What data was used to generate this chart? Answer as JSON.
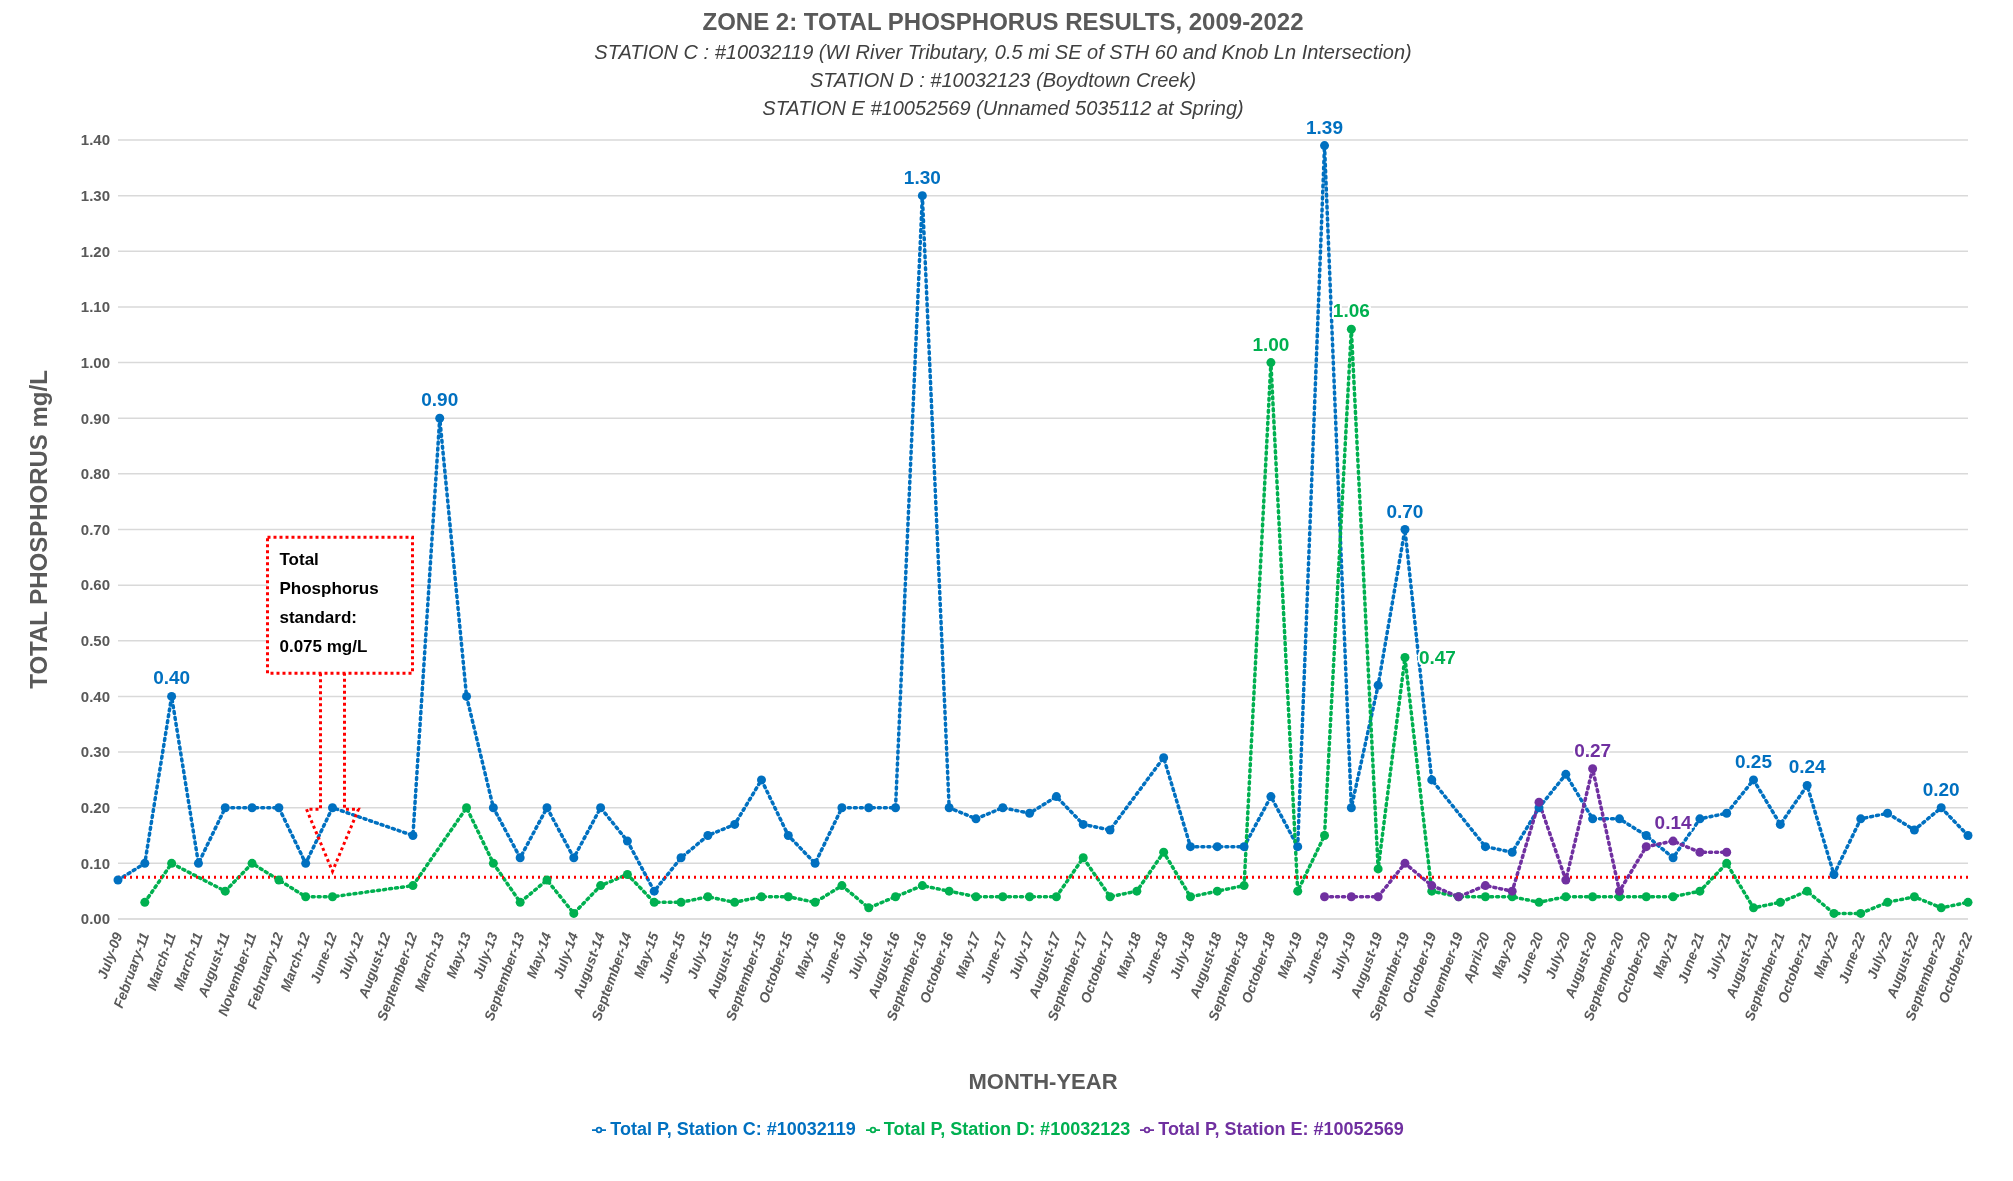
{
  "chart_data": {
    "type": "line",
    "title": "ZONE 2: TOTAL PHOSPHORUS RESULTS, 2009-2022",
    "subtitle": "STATION C : #10032119 (WI River Tributary, 0.5 mi SE of STH 60 and Knob Ln Intersection)\nSTATION D : #10032123 (Boydtown Creek)\nSTATION E  #10052569 (Unnamed 5035112 at Spring)",
    "xlabel": "MONTH-YEAR",
    "ylabel": "TOTAL PHOSPHORUS mg/L",
    "categories": [
      "July-09",
      "February-11",
      "March-11",
      "March-11",
      "August-11",
      "November-11",
      "February-12",
      "March-12",
      "June-12",
      "July-12",
      "August-12",
      "September-12",
      "March-13",
      "May-13",
      "July-13",
      "September-13",
      "May-14",
      "July-14",
      "August-14",
      "September-14",
      "May-15",
      "June-15",
      "July-15",
      "August-15",
      "September-15",
      "October-15",
      "May-16",
      "June-16",
      "July-16",
      "August-16",
      "September-16",
      "October-16",
      "May-17",
      "June-17",
      "July-17",
      "August-17",
      "September-17",
      "October-17",
      "May-18",
      "June-18",
      "July-18",
      "August-18",
      "September-18",
      "October-18",
      "May-19",
      "June-19",
      "July-19",
      "August-19",
      "September-19",
      "October-19",
      "November-19",
      "April-20",
      "May-20",
      "June-20",
      "July-20",
      "August-20",
      "September-20",
      "October-20",
      "May-21",
      "June-21",
      "July-21",
      "August-21",
      "September-21",
      "October-21",
      "May-22",
      "June-22",
      "July-22",
      "August-22",
      "September-22",
      "October-22"
    ],
    "series": [
      {
        "name": "Total P, Station C: #10032119",
        "color": "#0070c0",
        "values": [
          0.07,
          0.1,
          0.4,
          0.1,
          0.2,
          0.2,
          0.2,
          0.1,
          0.2,
          null,
          null,
          0.15,
          0.9,
          0.4,
          0.2,
          0.11,
          0.2,
          0.11,
          0.2,
          0.14,
          0.05,
          0.11,
          0.15,
          0.17,
          0.25,
          0.15,
          0.1,
          0.2,
          0.2,
          0.2,
          1.3,
          0.2,
          0.18,
          0.2,
          0.19,
          0.22,
          0.17,
          0.16,
          null,
          0.29,
          0.13,
          0.13,
          0.13,
          0.22,
          0.13,
          1.39,
          0.2,
          0.42,
          0.7,
          0.25,
          null,
          0.13,
          0.12,
          0.2,
          0.26,
          0.18,
          0.18,
          0.15,
          0.11,
          0.18,
          0.19,
          0.25,
          0.17,
          0.24,
          0.08,
          0.18,
          0.19,
          0.16,
          0.2,
          0.15
        ],
        "value_labels": [
          null,
          null,
          "0.40",
          null,
          null,
          null,
          null,
          null,
          null,
          null,
          null,
          null,
          "0.90",
          null,
          null,
          null,
          null,
          null,
          null,
          null,
          null,
          null,
          null,
          null,
          null,
          null,
          null,
          null,
          null,
          null,
          "1.30",
          null,
          null,
          null,
          null,
          null,
          null,
          null,
          null,
          null,
          null,
          null,
          null,
          null,
          null,
          "1.39",
          null,
          null,
          "0.70",
          null,
          null,
          null,
          null,
          null,
          null,
          null,
          null,
          null,
          null,
          null,
          null,
          "0.25",
          null,
          "0.24",
          null,
          null,
          null,
          null,
          "0.20",
          null
        ]
      },
      {
        "name": "Total P, Station D: #10032123",
        "color": "#00b050",
        "values": [
          null,
          0.03,
          0.1,
          null,
          0.05,
          0.1,
          0.07,
          0.04,
          0.04,
          null,
          null,
          0.06,
          null,
          0.2,
          0.1,
          0.03,
          0.07,
          0.01,
          0.06,
          0.08,
          0.03,
          0.03,
          0.04,
          0.03,
          0.04,
          0.04,
          0.03,
          0.06,
          0.02,
          0.04,
          0.06,
          0.05,
          0.04,
          0.04,
          0.04,
          0.04,
          0.11,
          0.04,
          0.05,
          0.12,
          0.04,
          0.05,
          0.06,
          1.0,
          0.05,
          0.15,
          1.06,
          0.09,
          0.47,
          0.05,
          0.04,
          0.04,
          0.04,
          0.03,
          0.04,
          0.04,
          0.04,
          0.04,
          0.04,
          0.05,
          0.1,
          0.02,
          0.03,
          0.05,
          0.01,
          0.01,
          0.03,
          0.04,
          0.02,
          0.03
        ],
        "value_labels": [
          null,
          null,
          null,
          null,
          null,
          null,
          null,
          null,
          null,
          null,
          null,
          null,
          null,
          null,
          null,
          null,
          null,
          null,
          null,
          null,
          null,
          null,
          null,
          null,
          null,
          null,
          null,
          null,
          null,
          null,
          null,
          null,
          null,
          null,
          null,
          null,
          null,
          null,
          null,
          null,
          null,
          null,
          null,
          "1.00",
          null,
          null,
          "1.06",
          null,
          "0.47",
          null,
          null,
          null,
          null,
          null,
          null,
          null,
          null,
          null,
          null,
          null,
          null,
          null,
          null,
          null,
          null,
          null,
          null,
          null,
          null,
          null
        ]
      },
      {
        "name": "Total P, Station E: #10052569",
        "color": "#7030a0",
        "values": [
          null,
          null,
          null,
          null,
          null,
          null,
          null,
          null,
          null,
          null,
          null,
          null,
          null,
          null,
          null,
          null,
          null,
          null,
          null,
          null,
          null,
          null,
          null,
          null,
          null,
          null,
          null,
          null,
          null,
          null,
          null,
          null,
          null,
          null,
          null,
          null,
          null,
          null,
          null,
          null,
          null,
          null,
          null,
          null,
          null,
          0.04,
          0.04,
          0.04,
          0.1,
          0.06,
          0.04,
          0.06,
          0.05,
          0.21,
          0.07,
          0.27,
          0.05,
          0.13,
          0.14,
          0.12,
          0.12,
          null,
          null,
          null,
          null,
          null,
          null,
          null,
          null,
          null
        ],
        "value_labels": [
          null,
          null,
          null,
          null,
          null,
          null,
          null,
          null,
          null,
          null,
          null,
          null,
          null,
          null,
          null,
          null,
          null,
          null,
          null,
          null,
          null,
          null,
          null,
          null,
          null,
          null,
          null,
          null,
          null,
          null,
          null,
          null,
          null,
          null,
          null,
          null,
          null,
          null,
          null,
          null,
          null,
          null,
          null,
          null,
          null,
          null,
          null,
          null,
          null,
          null,
          null,
          null,
          null,
          null,
          null,
          "0.27",
          null,
          null,
          "0.14",
          null,
          null,
          null,
          null,
          null,
          null,
          null,
          null,
          null,
          null,
          null
        ]
      }
    ],
    "ylim": [
      0,
      1.4
    ],
    "yticks": [
      {
        "value": 0,
        "label": "0.00"
      },
      {
        "value": 0.1,
        "label": "0.10"
      },
      {
        "value": 0.2,
        "label": "0.20"
      },
      {
        "value": 0.3,
        "label": "0.30"
      },
      {
        "value": 0.4,
        "label": "0.40"
      },
      {
        "value": 0.5,
        "label": "0.50"
      },
      {
        "value": 0.6,
        "label": "0.60"
      },
      {
        "value": 0.7,
        "label": "0.70"
      },
      {
        "value": 0.8,
        "label": "0.80"
      },
      {
        "value": 0.9,
        "label": "0.90"
      },
      {
        "value": 1.0,
        "label": "1.00"
      },
      {
        "value": 1.1,
        "label": "1.10"
      },
      {
        "value": 1.2,
        "label": "1.20"
      },
      {
        "value": 1.3,
        "label": "1.30"
      },
      {
        "value": 1.4,
        "label": "1.40"
      }
    ],
    "ref_lines": [
      {
        "axis": "y",
        "value": 0.075,
        "color": "#ff0000",
        "line_style": "dotted"
      }
    ],
    "annotations": [
      "Total Phosphorus standard: 0.075 mg/L"
    ],
    "grid": "y",
    "legend": "bottom",
    "marker": "circle",
    "line_style": "dotted"
  }
}
